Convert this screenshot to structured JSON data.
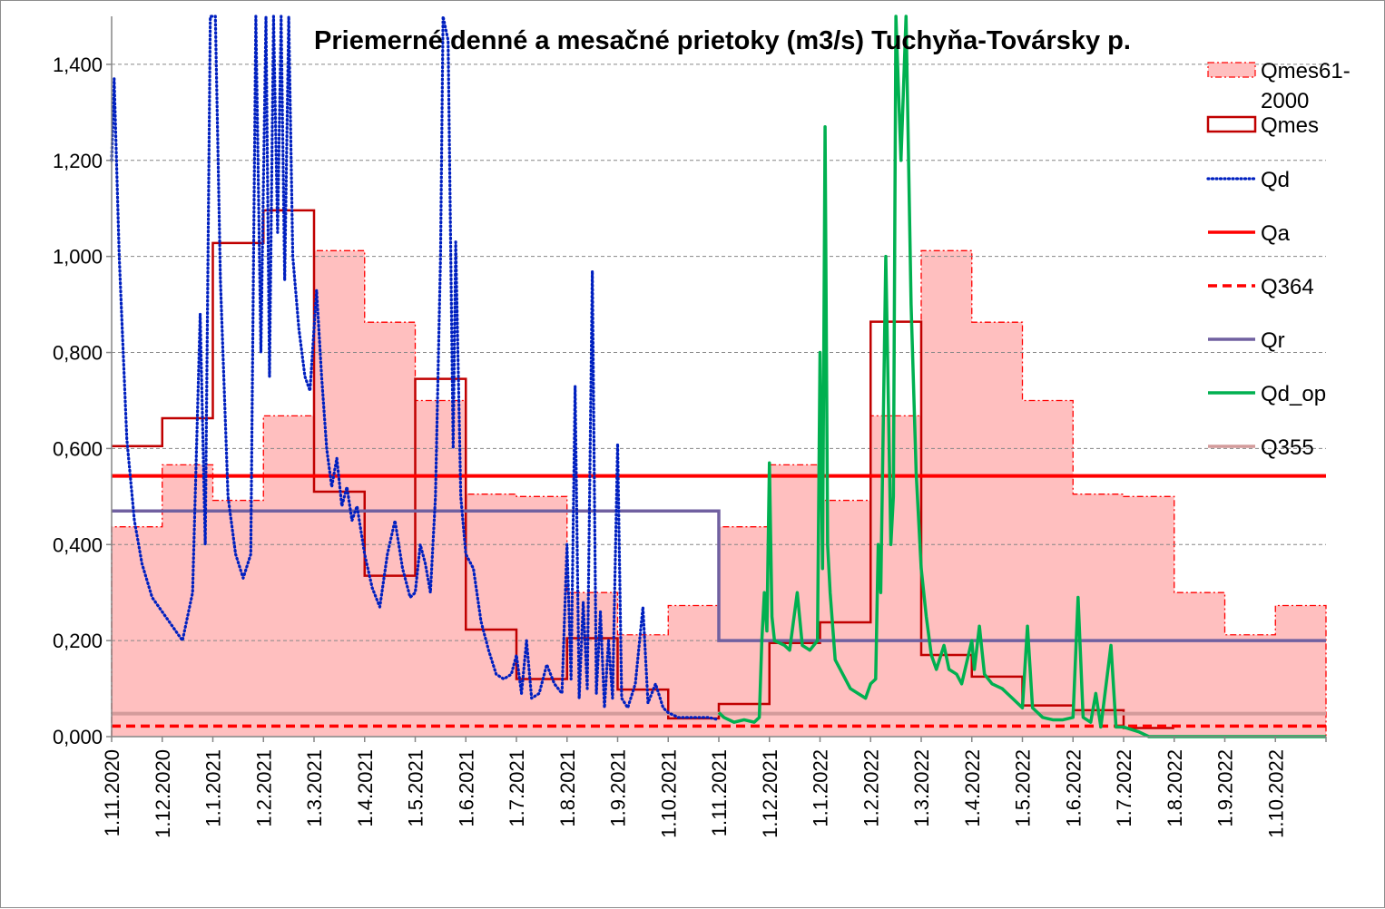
{
  "chart_data": {
    "type": "line",
    "title": "Priemerné denné a mesačné prietoky (m3/s) Tuchyňa-Tovársky p.",
    "xlabel": "",
    "ylabel": "",
    "ylim": [
      0,
      1.5
    ],
    "yticks": [
      "0,000",
      "0,200",
      "0,400",
      "0,600",
      "0,800",
      "1,000",
      "1,200",
      "1,400"
    ],
    "yticks_values": [
      0,
      0.2,
      0.4,
      0.6,
      0.8,
      1.0,
      1.2,
      1.4
    ],
    "xticks": [
      "1.11.2020",
      "1.12.2020",
      "1.1.2021",
      "1.2.2021",
      "1.3.2021",
      "1.4.2021",
      "1.5.2021",
      "1.6.2021",
      "1.7.2021",
      "1.8.2021",
      "1.9.2021",
      "1.10.2021",
      "1.11.2021",
      "1.12.2021",
      "1.1.2022",
      "1.2.2022",
      "1.3.2022",
      "1.4.2022",
      "1.5.2022",
      "1.6.2022",
      "1.7.2022",
      "1.8.2022",
      "1.9.2022",
      "1.10.2022"
    ],
    "grid": true,
    "legend_position": "right",
    "series": [
      {
        "name": "Qmes61-\n2000",
        "style": "area-step",
        "color": "#ffbfbf",
        "edge": "#ff0000",
        "values": [
          0.437,
          0.566,
          0.492,
          0.668,
          1.012,
          0.863,
          0.7,
          0.505,
          0.5,
          0.3,
          0.212,
          0.273,
          0.437,
          0.566,
          0.492,
          0.668,
          1.012,
          0.863,
          0.7,
          0.505,
          0.5,
          0.3,
          0.212,
          0.273
        ]
      },
      {
        "name": "Qmes",
        "style": "step",
        "color": "#c00000",
        "values": [
          0.605,
          0.663,
          1.028,
          1.096,
          0.51,
          0.335,
          0.745,
          0.223,
          0.12,
          0.205,
          0.098,
          0.038,
          0.068,
          0.195,
          0.238,
          0.864,
          0.17,
          0.125,
          0.065,
          0.055,
          0.018,
          null,
          null,
          null
        ]
      },
      {
        "name": "Qd",
        "style": "dotted",
        "color": "#0020c0",
        "points": [
          [
            0.0,
            1.2
          ],
          [
            0.05,
            1.37
          ],
          [
            0.15,
            1.0
          ],
          [
            0.3,
            0.62
          ],
          [
            0.45,
            0.45
          ],
          [
            0.6,
            0.36
          ],
          [
            0.8,
            0.29
          ],
          [
            1.0,
            0.26
          ],
          [
            1.2,
            0.23
          ],
          [
            1.4,
            0.2
          ],
          [
            1.6,
            0.3
          ],
          [
            1.75,
            0.88
          ],
          [
            1.85,
            0.4
          ],
          [
            1.95,
            1.5
          ],
          [
            2.05,
            1.5
          ],
          [
            2.15,
            0.95
          ],
          [
            2.3,
            0.5
          ],
          [
            2.45,
            0.38
          ],
          [
            2.6,
            0.33
          ],
          [
            2.75,
            0.38
          ],
          [
            2.85,
            1.5
          ],
          [
            2.95,
            0.8
          ],
          [
            3.05,
            1.5
          ],
          [
            3.12,
            0.75
          ],
          [
            3.2,
            1.5
          ],
          [
            3.28,
            1.05
          ],
          [
            3.35,
            1.5
          ],
          [
            3.42,
            0.95
          ],
          [
            3.5,
            1.5
          ],
          [
            3.58,
            1.0
          ],
          [
            3.7,
            0.85
          ],
          [
            3.82,
            0.75
          ],
          [
            3.92,
            0.72
          ],
          [
            4.05,
            0.93
          ],
          [
            4.15,
            0.75
          ],
          [
            4.25,
            0.6
          ],
          [
            4.35,
            0.52
          ],
          [
            4.45,
            0.58
          ],
          [
            4.55,
            0.48
          ],
          [
            4.65,
            0.52
          ],
          [
            4.75,
            0.45
          ],
          [
            4.85,
            0.48
          ],
          [
            5.0,
            0.38
          ],
          [
            5.15,
            0.31
          ],
          [
            5.3,
            0.27
          ],
          [
            5.45,
            0.38
          ],
          [
            5.6,
            0.45
          ],
          [
            5.75,
            0.35
          ],
          [
            5.9,
            0.29
          ],
          [
            6.0,
            0.3
          ],
          [
            6.1,
            0.4
          ],
          [
            6.2,
            0.36
          ],
          [
            6.3,
            0.3
          ],
          [
            6.4,
            0.5
          ],
          [
            6.5,
            1.0
          ],
          [
            6.55,
            1.5
          ],
          [
            6.65,
            1.45
          ],
          [
            6.75,
            0.6
          ],
          [
            6.8,
            1.03
          ],
          [
            6.9,
            0.5
          ],
          [
            7.0,
            0.38
          ],
          [
            7.15,
            0.35
          ],
          [
            7.3,
            0.24
          ],
          [
            7.45,
            0.18
          ],
          [
            7.6,
            0.13
          ],
          [
            7.75,
            0.12
          ],
          [
            7.9,
            0.13
          ],
          [
            8.0,
            0.17
          ],
          [
            8.1,
            0.09
          ],
          [
            8.2,
            0.2
          ],
          [
            8.3,
            0.08
          ],
          [
            8.45,
            0.09
          ],
          [
            8.6,
            0.15
          ],
          [
            8.75,
            0.11
          ],
          [
            8.9,
            0.09
          ],
          [
            9.0,
            0.4
          ],
          [
            9.08,
            0.12
          ],
          [
            9.16,
            0.73
          ],
          [
            9.24,
            0.08
          ],
          [
            9.32,
            0.28
          ],
          [
            9.4,
            0.1
          ],
          [
            9.5,
            0.97
          ],
          [
            9.58,
            0.09
          ],
          [
            9.66,
            0.26
          ],
          [
            9.74,
            0.06
          ],
          [
            9.82,
            0.2
          ],
          [
            9.9,
            0.08
          ],
          [
            10.0,
            0.61
          ],
          [
            10.08,
            0.08
          ],
          [
            10.2,
            0.06
          ],
          [
            10.35,
            0.11
          ],
          [
            10.5,
            0.27
          ],
          [
            10.6,
            0.07
          ],
          [
            10.75,
            0.11
          ],
          [
            10.9,
            0.06
          ],
          [
            11.0,
            0.05
          ],
          [
            11.2,
            0.04
          ],
          [
            11.5,
            0.04
          ],
          [
            11.8,
            0.04
          ],
          [
            12.0,
            0.035
          ]
        ]
      },
      {
        "name": "Qa",
        "style": "line",
        "color": "#ff0000",
        "value": 0.543
      },
      {
        "name": "Q364",
        "style": "dashed",
        "color": "#ff0000",
        "value": 0.022
      },
      {
        "name": "Qr",
        "style": "step",
        "color": "#7060a0",
        "segments": [
          [
            0,
            12,
            0.47
          ],
          [
            12,
            24,
            0.2
          ]
        ]
      },
      {
        "name": "Qd_op",
        "style": "line",
        "color": "#00b050",
        "points": [
          [
            12.0,
            0.05
          ],
          [
            12.1,
            0.04
          ],
          [
            12.3,
            0.03
          ],
          [
            12.5,
            0.035
          ],
          [
            12.7,
            0.03
          ],
          [
            12.8,
            0.04
          ],
          [
            12.85,
            0.2
          ],
          [
            12.9,
            0.3
          ],
          [
            12.95,
            0.22
          ],
          [
            13.0,
            0.57
          ],
          [
            13.05,
            0.25
          ],
          [
            13.1,
            0.2
          ],
          [
            13.3,
            0.19
          ],
          [
            13.4,
            0.18
          ],
          [
            13.55,
            0.3
          ],
          [
            13.65,
            0.19
          ],
          [
            13.8,
            0.18
          ],
          [
            13.95,
            0.2
          ],
          [
            14.0,
            0.8
          ],
          [
            14.05,
            0.35
          ],
          [
            14.1,
            1.27
          ],
          [
            14.15,
            0.4
          ],
          [
            14.2,
            0.3
          ],
          [
            14.3,
            0.16
          ],
          [
            14.45,
            0.13
          ],
          [
            14.6,
            0.1
          ],
          [
            14.75,
            0.09
          ],
          [
            14.9,
            0.08
          ],
          [
            15.0,
            0.11
          ],
          [
            15.1,
            0.12
          ],
          [
            15.15,
            0.4
          ],
          [
            15.2,
            0.3
          ],
          [
            15.3,
            1.0
          ],
          [
            15.4,
            0.4
          ],
          [
            15.45,
            0.5
          ],
          [
            15.5,
            1.5
          ],
          [
            15.6,
            1.2
          ],
          [
            15.7,
            1.5
          ],
          [
            15.8,
            0.9
          ],
          [
            15.9,
            0.55
          ],
          [
            16.0,
            0.35
          ],
          [
            16.1,
            0.25
          ],
          [
            16.2,
            0.17
          ],
          [
            16.3,
            0.14
          ],
          [
            16.45,
            0.19
          ],
          [
            16.55,
            0.14
          ],
          [
            16.7,
            0.13
          ],
          [
            16.8,
            0.11
          ],
          [
            17.0,
            0.2
          ],
          [
            17.05,
            0.14
          ],
          [
            17.15,
            0.23
          ],
          [
            17.25,
            0.13
          ],
          [
            17.4,
            0.11
          ],
          [
            17.6,
            0.1
          ],
          [
            17.8,
            0.08
          ],
          [
            18.0,
            0.06
          ],
          [
            18.1,
            0.23
          ],
          [
            18.2,
            0.06
          ],
          [
            18.4,
            0.04
          ],
          [
            18.6,
            0.035
          ],
          [
            18.8,
            0.035
          ],
          [
            19.0,
            0.04
          ],
          [
            19.1,
            0.29
          ],
          [
            19.2,
            0.04
          ],
          [
            19.35,
            0.03
          ],
          [
            19.45,
            0.09
          ],
          [
            19.55,
            0.02
          ],
          [
            19.75,
            0.19
          ],
          [
            19.85,
            0.02
          ],
          [
            20.0,
            0.02
          ],
          [
            20.3,
            0.01
          ],
          [
            20.5,
            0.0
          ],
          [
            21.0,
            0.0
          ],
          [
            22.0,
            0.0
          ],
          [
            23.0,
            0.0
          ],
          [
            24.0,
            0.0
          ]
        ]
      },
      {
        "name": "Q355",
        "style": "line",
        "color": "#d39b9b",
        "value": 0.048
      }
    ]
  }
}
